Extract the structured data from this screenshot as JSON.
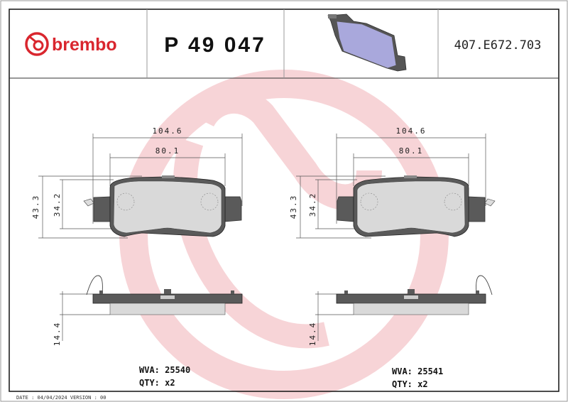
{
  "header": {
    "brand": "brembo",
    "part_number": "P 49 047",
    "reference_code": "407.E672.703"
  },
  "colors": {
    "brand_red": "#d9262e",
    "watermark": "#f6cdd1",
    "plate": "#5a5a5a",
    "friction": "#d9d9d9",
    "iso_pad": "#a9a8dc"
  },
  "drawings": [
    {
      "dims": {
        "overall_width": "104.6",
        "friction_width": "80.1",
        "overall_height": "43.3",
        "friction_height": "34.2",
        "thickness": "14.4"
      },
      "wva": "WVA: 25540",
      "qty": "QTY: x2"
    },
    {
      "dims": {
        "overall_width": "104.6",
        "friction_width": "80.1",
        "overall_height": "43.3",
        "friction_height": "34.2",
        "thickness": "14.4"
      },
      "wva": "WVA: 25541",
      "qty": "QTY: x2"
    }
  ],
  "footer": {
    "text": "DATE : 04/04/2024 VERSION : 00"
  }
}
